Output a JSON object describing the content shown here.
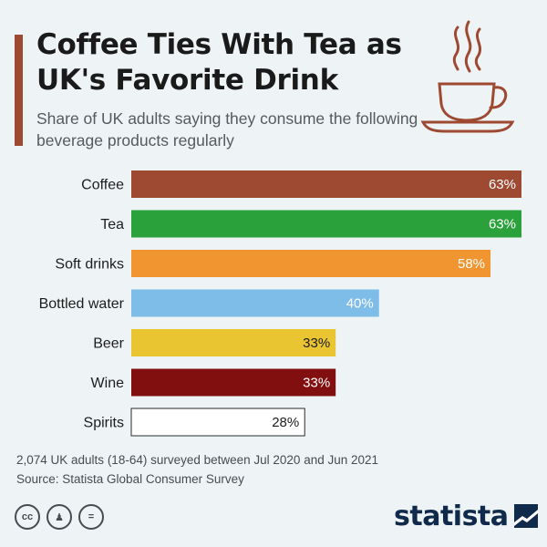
{
  "header": {
    "title": "Coffee Ties With Tea as UK's Favorite Drink",
    "subtitle": "Share of UK adults saying they consume the following beverage products regularly",
    "icon": "coffee-cup-icon"
  },
  "chart_data": {
    "type": "bar",
    "orientation": "horizontal",
    "title": "Coffee Ties With Tea as UK's Favorite Drink",
    "subtitle": "Share of UK adults saying they consume the following beverage products regularly",
    "categories": [
      "Coffee",
      "Tea",
      "Soft drinks",
      "Bottled water",
      "Beer",
      "Wine",
      "Spirits"
    ],
    "values": [
      63,
      63,
      58,
      40,
      33,
      33,
      28
    ],
    "value_labels": [
      "63%",
      "63%",
      "58%",
      "40%",
      "33%",
      "33%",
      "28%"
    ],
    "unit": "%",
    "colors": [
      "#9e4a33",
      "#2aa13a",
      "#f0952f",
      "#7fbde9",
      "#e9c531",
      "#820f10",
      "#ffffff"
    ],
    "label_colors": [
      "#ffffff",
      "#ffffff",
      "#ffffff",
      "#ffffff",
      "#1d1d1d",
      "#ffffff",
      "#1d1d1d"
    ],
    "xlim": [
      0,
      63
    ],
    "grid": false,
    "legend": "none"
  },
  "footer": {
    "note": "2,074 UK adults (18-64) surveyed between Jul 2020 and Jun 2021",
    "source": "Source: Statista Global Consumer Survey"
  },
  "license_icons": [
    {
      "name": "cc-icon",
      "glyph": "cc"
    },
    {
      "name": "attribution-icon",
      "glyph": "♟"
    },
    {
      "name": "no-derivatives-icon",
      "glyph": "="
    }
  ],
  "brand": {
    "name": "statista",
    "colors": {
      "primary": "#0f2a4a"
    }
  }
}
